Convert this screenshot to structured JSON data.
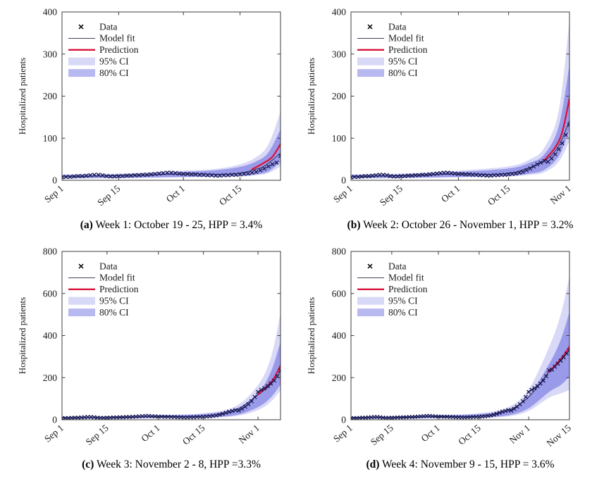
{
  "figure": {
    "background": "#ffffff",
    "description": "2x2 grid of epidemic forecast panels: hospitalized patients with model fit, weekly prediction and confidence bands"
  },
  "colors": {
    "band95": "#d8d8f7",
    "band80": "#9a9aea",
    "legend80_swatch": "#b9b9f1",
    "prediction": "#d8143a",
    "marker": "#141450",
    "fit_line": "#2a2a42",
    "axis": "#3c3c3c",
    "text": "#1a1a1a"
  },
  "ylabel": "Hospitalized patients",
  "legend": {
    "items": [
      {
        "label": "Data",
        "type": "marker"
      },
      {
        "label": "Model fit",
        "type": "line"
      },
      {
        "label": "Prediction",
        "type": "redline"
      },
      {
        "label": "95% CI",
        "type": "patch95"
      },
      {
        "label": "80% CI",
        "type": "patch80"
      }
    ]
  },
  "chart_data": [
    {
      "id": "a",
      "type": "line",
      "caption_label": "(a)",
      "caption": "Week 1: October 19 - 25, HPP = 3.4%",
      "ylabel": "Hospitalized patients",
      "ylim": [
        0,
        400
      ],
      "yticks": [
        0,
        100,
        200,
        300,
        400
      ],
      "x_unit": "days since Sep 1",
      "x_end": 54,
      "xticks": [
        [
          0,
          "Sep 1"
        ],
        [
          14,
          "Sep 15"
        ],
        [
          30,
          "Oct 1"
        ],
        [
          44,
          "Oct 15"
        ]
      ],
      "data_values": [
        7,
        8,
        8,
        9,
        10,
        10,
        11,
        12,
        13,
        13,
        12,
        10,
        9,
        9,
        10,
        10,
        11,
        11,
        12,
        12,
        13,
        13,
        14,
        15,
        16,
        17,
        18,
        18,
        17,
        16,
        15,
        15,
        14,
        14,
        13,
        13,
        12,
        12,
        11,
        11,
        12,
        12,
        13,
        13,
        14,
        15,
        16,
        18,
        20,
        24,
        28,
        33,
        38,
        42,
        58
      ],
      "fit": [
        [
          0,
          9
        ],
        [
          14,
          11
        ],
        [
          30,
          15
        ],
        [
          40,
          14
        ],
        [
          44,
          17
        ],
        [
          47,
          24
        ],
        [
          50,
          34
        ],
        [
          54,
          64
        ]
      ],
      "prediction": [
        [
          47,
          26
        ],
        [
          50,
          42
        ],
        [
          52,
          56
        ],
        [
          54,
          86
        ]
      ],
      "ci95": [
        [
          0,
          4,
          14
        ],
        [
          14,
          5,
          16
        ],
        [
          30,
          7,
          23
        ],
        [
          38,
          8,
          27
        ],
        [
          44,
          9,
          38
        ],
        [
          48,
          12,
          55
        ],
        [
          51,
          17,
          85
        ],
        [
          54,
          33,
          162
        ]
      ],
      "ci80": [
        [
          0,
          5,
          13
        ],
        [
          14,
          6,
          14
        ],
        [
          30,
          8,
          20
        ],
        [
          38,
          9,
          24
        ],
        [
          44,
          11,
          32
        ],
        [
          48,
          14,
          45
        ],
        [
          51,
          21,
          66
        ],
        [
          54,
          44,
          121
        ]
      ]
    },
    {
      "id": "b",
      "type": "line",
      "caption_label": "(b)",
      "caption": "Week 2: October 26 - November 1, HPP = 3.2%",
      "ylabel": "Hospitalized patients",
      "ylim": [
        0,
        400
      ],
      "yticks": [
        0,
        100,
        200,
        300,
        400
      ],
      "x_unit": "days since Sep 1",
      "x_end": 61,
      "xticks": [
        [
          0,
          "Sep 1"
        ],
        [
          14,
          "Sep 15"
        ],
        [
          30,
          "Oct 1"
        ],
        [
          44,
          "Oct 15"
        ],
        [
          61,
          "Nov 1"
        ]
      ],
      "data_values": [
        7,
        8,
        8,
        9,
        10,
        10,
        11,
        12,
        13,
        13,
        12,
        10,
        9,
        9,
        10,
        10,
        11,
        11,
        12,
        12,
        13,
        13,
        14,
        15,
        16,
        17,
        18,
        18,
        17,
        16,
        15,
        15,
        14,
        14,
        13,
        13,
        12,
        12,
        11,
        11,
        12,
        12,
        13,
        13,
        14,
        15,
        16,
        18,
        20,
        24,
        28,
        33,
        38,
        42,
        46,
        44,
        52,
        62,
        74,
        88,
        108,
        132
      ],
      "fit": [
        [
          0,
          9
        ],
        [
          14,
          11
        ],
        [
          30,
          15
        ],
        [
          40,
          14
        ],
        [
          44,
          17
        ],
        [
          47,
          22
        ],
        [
          54,
          46
        ],
        [
          58,
          82
        ],
        [
          61,
          142
        ]
      ],
      "prediction": [
        [
          54,
          48
        ],
        [
          57,
          78
        ],
        [
          59,
          115
        ],
        [
          61,
          195
        ]
      ],
      "ci95": [
        [
          0,
          4,
          14
        ],
        [
          14,
          5,
          16
        ],
        [
          30,
          7,
          23
        ],
        [
          44,
          9,
          33
        ],
        [
          50,
          13,
          50
        ],
        [
          54,
          19,
          78
        ],
        [
          58,
          44,
          165
        ],
        [
          61,
          93,
          380
        ]
      ],
      "ci80": [
        [
          0,
          5,
          13
        ],
        [
          14,
          6,
          14
        ],
        [
          30,
          8,
          20
        ],
        [
          44,
          11,
          28
        ],
        [
          50,
          16,
          42
        ],
        [
          54,
          25,
          62
        ],
        [
          58,
          57,
          128
        ],
        [
          61,
          120,
          274
        ]
      ]
    },
    {
      "id": "c",
      "type": "line",
      "caption_label": "(c)",
      "caption": "Week 3: November 2 - 8, HPP =3.3%",
      "ylabel": "Hospitalized patients",
      "ylim": [
        0,
        800
      ],
      "yticks": [
        0,
        200,
        400,
        600,
        800
      ],
      "x_unit": "days since Sep 1",
      "x_end": 68,
      "xticks": [
        [
          0,
          "Sep 1"
        ],
        [
          14,
          "Sep 15"
        ],
        [
          30,
          "Oct 1"
        ],
        [
          44,
          "Oct 15"
        ],
        [
          61,
          "Nov 1"
        ]
      ],
      "data_values": [
        7,
        8,
        8,
        9,
        10,
        10,
        11,
        12,
        13,
        13,
        12,
        10,
        9,
        9,
        10,
        10,
        11,
        11,
        12,
        12,
        13,
        13,
        14,
        15,
        16,
        17,
        18,
        18,
        17,
        16,
        15,
        15,
        14,
        14,
        13,
        13,
        12,
        12,
        11,
        11,
        12,
        12,
        13,
        13,
        14,
        15,
        16,
        18,
        20,
        24,
        28,
        33,
        38,
        42,
        46,
        44,
        52,
        62,
        74,
        88,
        108,
        132,
        142,
        150,
        160,
        172,
        186,
        207,
        235
      ],
      "fit": [
        [
          0,
          9
        ],
        [
          14,
          11
        ],
        [
          30,
          15
        ],
        [
          40,
          14
        ],
        [
          44,
          17
        ],
        [
          47,
          22
        ],
        [
          54,
          44
        ],
        [
          61,
          118
        ],
        [
          65,
          168
        ],
        [
          68,
          230
        ]
      ],
      "prediction": [
        [
          61,
          120
        ],
        [
          64,
          162
        ],
        [
          66,
          198
        ],
        [
          68,
          258
        ]
      ],
      "ci95": [
        [
          0,
          4,
          14
        ],
        [
          14,
          5,
          16
        ],
        [
          30,
          7,
          23
        ],
        [
          44,
          9,
          31
        ],
        [
          54,
          17,
          64
        ],
        [
          61,
          46,
          165
        ],
        [
          65,
          86,
          295
        ],
        [
          68,
          140,
          505
        ]
      ],
      "ci80": [
        [
          0,
          5,
          13
        ],
        [
          14,
          6,
          14
        ],
        [
          30,
          8,
          20
        ],
        [
          44,
          11,
          27
        ],
        [
          54,
          22,
          52
        ],
        [
          61,
          60,
          128
        ],
        [
          65,
          106,
          228
        ],
        [
          68,
          167,
          370
        ]
      ]
    },
    {
      "id": "d",
      "type": "line",
      "caption_label": "(d)",
      "caption": "Week 4: November 9 - 15, HPP = 3.6%",
      "ylabel": "Hospitalized patients",
      "ylim": [
        0,
        800
      ],
      "yticks": [
        0,
        200,
        400,
        600,
        800
      ],
      "x_unit": "days since Sep 1",
      "x_end": 75,
      "xticks": [
        [
          0,
          "Sep 1"
        ],
        [
          14,
          "Sep 15"
        ],
        [
          30,
          "Oct 1"
        ],
        [
          44,
          "Oct 15"
        ],
        [
          61,
          "Nov 1"
        ],
        [
          75,
          "Nov 15"
        ]
      ],
      "data_values": [
        7,
        8,
        8,
        9,
        10,
        10,
        11,
        12,
        13,
        13,
        12,
        10,
        9,
        9,
        10,
        10,
        11,
        11,
        12,
        12,
        13,
        13,
        14,
        15,
        16,
        17,
        18,
        18,
        17,
        16,
        15,
        15,
        14,
        14,
        13,
        13,
        12,
        12,
        11,
        11,
        12,
        12,
        13,
        13,
        14,
        15,
        16,
        18,
        20,
        24,
        28,
        33,
        38,
        42,
        46,
        44,
        52,
        62,
        74,
        88,
        108,
        132,
        142,
        150,
        160,
        172,
        186,
        207,
        235,
        238,
        252,
        266,
        281,
        297,
        315,
        330
      ],
      "fit": [
        [
          0,
          9
        ],
        [
          14,
          11
        ],
        [
          30,
          15
        ],
        [
          40,
          14
        ],
        [
          44,
          17
        ],
        [
          47,
          22
        ],
        [
          54,
          44
        ],
        [
          61,
          108
        ],
        [
          68,
          228
        ],
        [
          72,
          292
        ],
        [
          75,
          345
        ]
      ],
      "prediction": [
        [
          68,
          228
        ],
        [
          71,
          272
        ],
        [
          73,
          304
        ],
        [
          75,
          348
        ]
      ],
      "ci95": [
        [
          0,
          4,
          14
        ],
        [
          14,
          5,
          16
        ],
        [
          30,
          7,
          23
        ],
        [
          44,
          9,
          31
        ],
        [
          54,
          16,
          60
        ],
        [
          61,
          42,
          145
        ],
        [
          68,
          105,
          345
        ],
        [
          72,
          125,
          500
        ],
        [
          75,
          142,
          682
        ]
      ],
      "ci80": [
        [
          0,
          5,
          13
        ],
        [
          14,
          6,
          14
        ],
        [
          30,
          8,
          20
        ],
        [
          44,
          11,
          27
        ],
        [
          54,
          21,
          48
        ],
        [
          61,
          55,
          115
        ],
        [
          68,
          132,
          265
        ],
        [
          72,
          165,
          380
        ],
        [
          75,
          205,
          512
        ]
      ]
    }
  ]
}
